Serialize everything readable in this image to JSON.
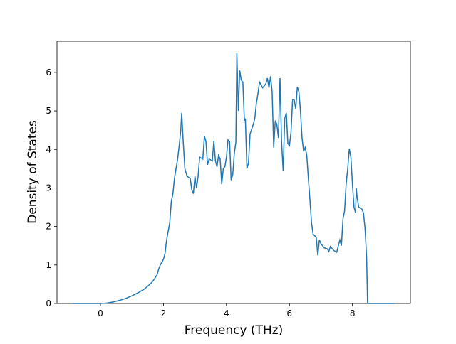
{
  "chart_data": {
    "type": "line",
    "x_label": "Frequency (THz)",
    "y_label": "Density of States",
    "xlim": [
      -1.38,
      9.84
    ],
    "ylim": [
      0,
      6.81
    ],
    "xticks": [
      0,
      2,
      4,
      6,
      8
    ],
    "yticks": [
      0,
      1,
      2,
      3,
      4,
      5,
      6
    ],
    "x": [
      -0.88,
      0,
      0.2,
      0.4,
      0.6,
      0.8,
      1.0,
      1.2,
      1.4,
      1.6,
      1.7,
      1.8,
      1.85,
      1.9,
      2.0,
      2.05,
      2.1,
      2.2,
      2.25,
      2.3,
      2.35,
      2.4,
      2.45,
      2.5,
      2.55,
      2.58,
      2.62,
      2.68,
      2.75,
      2.85,
      2.9,
      2.95,
      3.0,
      3.05,
      3.1,
      3.15,
      3.25,
      3.3,
      3.35,
      3.4,
      3.45,
      3.55,
      3.6,
      3.65,
      3.7,
      3.75,
      3.8,
      3.85,
      3.9,
      3.95,
      4.0,
      4.05,
      4.1,
      4.15,
      4.2,
      4.25,
      4.3,
      4.33,
      4.38,
      4.42,
      4.47,
      4.52,
      4.57,
      4.6,
      4.65,
      4.7,
      4.75,
      4.85,
      4.9,
      4.95,
      5.0,
      5.05,
      5.15,
      5.25,
      5.3,
      5.35,
      5.4,
      5.45,
      5.5,
      5.55,
      5.6,
      5.65,
      5.7,
      5.75,
      5.8,
      5.85,
      5.9,
      5.95,
      6.0,
      6.05,
      6.1,
      6.15,
      6.2,
      6.25,
      6.3,
      6.35,
      6.4,
      6.45,
      6.5,
      6.55,
      6.6,
      6.65,
      6.7,
      6.75,
      6.85,
      6.9,
      6.95,
      7.0,
      7.1,
      7.2,
      7.25,
      7.3,
      7.4,
      7.5,
      7.6,
      7.65,
      7.7,
      7.75,
      7.8,
      7.85,
      7.9,
      7.95,
      8.0,
      8.05,
      8.1,
      8.12,
      8.15,
      8.2,
      8.3,
      8.35,
      8.4,
      8.45,
      8.48,
      9.32
    ],
    "series": [
      {
        "color": "#1f77b4",
        "values": [
          0,
          0,
          0.01,
          0.04,
          0.08,
          0.13,
          0.2,
          0.28,
          0.38,
          0.52,
          0.62,
          0.75,
          0.9,
          1.0,
          1.15,
          1.3,
          1.65,
          2.1,
          2.65,
          2.85,
          3.25,
          3.5,
          3.75,
          4.1,
          4.5,
          4.95,
          4.3,
          3.5,
          3.3,
          3.25,
          2.95,
          2.85,
          3.3,
          3.0,
          3.3,
          3.8,
          3.75,
          4.35,
          4.2,
          3.6,
          3.75,
          3.7,
          4.22,
          3.7,
          3.55,
          3.85,
          3.75,
          3.1,
          3.5,
          3.55,
          3.8,
          4.25,
          4.2,
          3.2,
          3.35,
          3.9,
          4.2,
          6.5,
          5.0,
          6.05,
          5.8,
          5.75,
          4.75,
          4.8,
          3.5,
          3.65,
          4.4,
          4.65,
          4.8,
          5.2,
          5.45,
          5.75,
          5.6,
          5.7,
          5.85,
          5.6,
          5.9,
          5.5,
          4.05,
          4.75,
          4.65,
          4.3,
          5.85,
          4.2,
          3.45,
          4.8,
          4.95,
          4.15,
          4.1,
          4.45,
          5.3,
          5.3,
          5.05,
          5.62,
          5.5,
          5.0,
          4.3,
          3.95,
          4.05,
          3.85,
          3.25,
          2.7,
          2.1,
          1.8,
          1.72,
          1.25,
          1.65,
          1.55,
          1.45,
          1.42,
          1.35,
          1.48,
          1.38,
          1.33,
          1.65,
          1.5,
          2.2,
          2.4,
          3.1,
          3.5,
          4.02,
          3.8,
          3.1,
          2.5,
          2.35,
          3.0,
          2.75,
          2.5,
          2.45,
          2.35,
          1.95,
          1.2,
          0,
          0
        ]
      }
    ]
  }
}
